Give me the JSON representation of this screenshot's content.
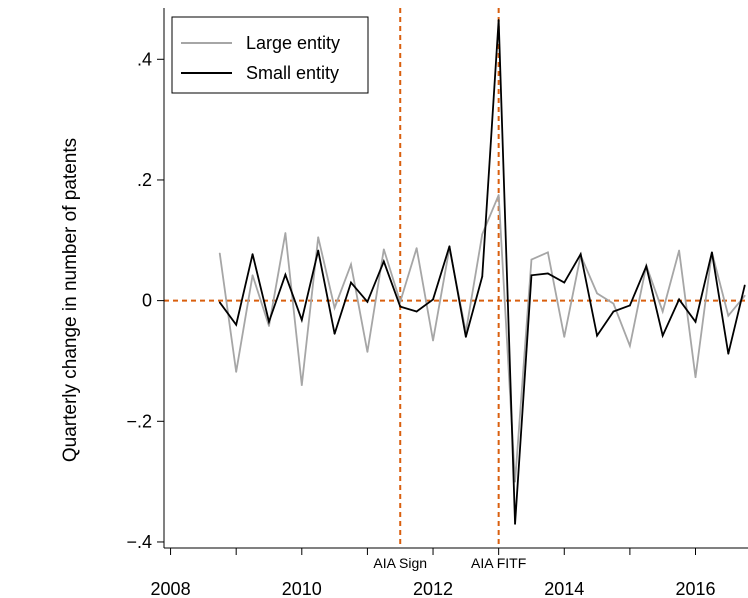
{
  "chart_data": {
    "type": "line",
    "title": "",
    "xlabel": "",
    "ylabel": "Quarterly change in number of patents",
    "xlim": [
      2007.9,
      2016.8
    ],
    "ylim": [
      -0.41,
      0.485
    ],
    "x_ticks": [
      2008,
      2010,
      2012,
      2014,
      2016
    ],
    "x_tick_labels": [
      "2008",
      "2010",
      "2012",
      "2014",
      "2016"
    ],
    "x_minor_ticks": [
      2009,
      2011,
      2013,
      2015
    ],
    "y_ticks": [
      -0.4,
      -0.2,
      0,
      0.2,
      0.4
    ],
    "y_tick_labels": [
      "−.4",
      "−.2",
      "0",
      ".2",
      ".4"
    ],
    "grid": false,
    "legend_position": "top-left",
    "reference_lines": [
      {
        "axis": "x",
        "value": 2011.5,
        "label": "AIA Sign",
        "color": "#d95f0e",
        "style": "dashed"
      },
      {
        "axis": "x",
        "value": 2013.0,
        "label": "AIA FITF",
        "color": "#d95f0e",
        "style": "dashed"
      },
      {
        "axis": "y",
        "value": 0,
        "label": "",
        "color": "#d95f0e",
        "style": "dashed"
      }
    ],
    "x": [
      2008.75,
      2009.0,
      2009.25,
      2009.5,
      2009.75,
      2010.0,
      2010.25,
      2010.5,
      2010.75,
      2011.0,
      2011.25,
      2011.5,
      2011.75,
      2012.0,
      2012.25,
      2012.5,
      2012.75,
      2013.0,
      2013.25,
      2013.5,
      2013.75,
      2014.0,
      2014.25,
      2014.5,
      2014.75,
      2015.0,
      2015.25,
      2015.5,
      2015.75,
      2016.0,
      2016.25,
      2016.5,
      2016.75
    ],
    "series": [
      {
        "name": "Large entity",
        "color": "#a6a6a6",
        "values": [
          0.078,
          -0.118,
          0.042,
          -0.042,
          0.112,
          -0.14,
          0.105,
          -0.012,
          0.06,
          -0.085,
          0.085,
          -0.002,
          0.087,
          -0.066,
          0.087,
          -0.052,
          0.11,
          0.175,
          -0.3,
          0.068,
          0.08,
          -0.06,
          0.075,
          0.012,
          -0.005,
          -0.075,
          0.058,
          -0.018,
          0.083,
          -0.127,
          0.08,
          -0.025,
          0.008
        ]
      },
      {
        "name": "Small entity",
        "color": "#000000",
        "values": [
          -0.003,
          -0.04,
          0.077,
          -0.035,
          0.043,
          -0.032,
          0.083,
          -0.055,
          0.03,
          -0.002,
          0.065,
          -0.01,
          -0.018,
          0.002,
          0.09,
          -0.06,
          0.04,
          0.465,
          -0.37,
          0.042,
          0.045,
          0.03,
          0.077,
          -0.058,
          -0.018,
          -0.008,
          0.057,
          -0.058,
          0.002,
          -0.035,
          0.08,
          -0.088,
          0.025
        ]
      }
    ]
  }
}
